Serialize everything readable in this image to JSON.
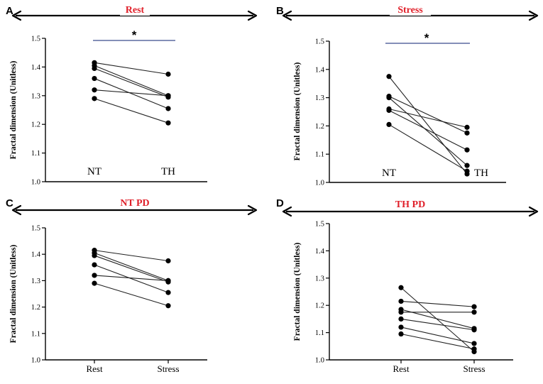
{
  "chart_data": [
    {
      "type": "line",
      "panel": "A",
      "title": "Rest",
      "ylabel": "Fractal dimension (Unitless)",
      "categories": [
        "NT",
        "TH"
      ],
      "category_labels_inside": true,
      "ylim": [
        1.0,
        1.5
      ],
      "yticks": [
        "1.0",
        "1.1",
        "1.2",
        "1.3",
        "1.4",
        "1.5"
      ],
      "significance": "*",
      "series": [
        {
          "name": "s1",
          "values": [
            1.415,
            1.375
          ]
        },
        {
          "name": "s2",
          "values": [
            1.405,
            1.3
          ]
        },
        {
          "name": "s3",
          "values": [
            1.395,
            1.295
          ]
        },
        {
          "name": "s4",
          "values": [
            1.36,
            1.255
          ]
        },
        {
          "name": "s5",
          "values": [
            1.32,
            1.3
          ]
        },
        {
          "name": "s6",
          "values": [
            1.29,
            1.205
          ]
        }
      ]
    },
    {
      "type": "line",
      "panel": "B",
      "title": "Stress",
      "ylabel": "Fractal dimension (Unitless)",
      "categories": [
        "NT",
        "TH"
      ],
      "category_labels_inside": true,
      "ylim": [
        1.0,
        1.5
      ],
      "yticks": [
        "1.0",
        "1.1",
        "1.2",
        "1.3",
        "1.4",
        "1.5"
      ],
      "significance": "*",
      "series": [
        {
          "name": "s1",
          "values": [
            1.375,
            1.03
          ]
        },
        {
          "name": "s2",
          "values": [
            1.305,
            1.175
          ]
        },
        {
          "name": "s3",
          "values": [
            1.3,
            1.06
          ]
        },
        {
          "name": "s4",
          "values": [
            1.26,
            1.195
          ]
        },
        {
          "name": "s5",
          "values": [
            1.255,
            1.115
          ]
        },
        {
          "name": "s6",
          "values": [
            1.205,
            1.04
          ]
        }
      ]
    },
    {
      "type": "line",
      "panel": "C",
      "title": "NT PD",
      "ylabel": "Fractal dimension (Unitless)",
      "categories": [
        "Rest",
        "Stress"
      ],
      "category_labels_inside": false,
      "ylim": [
        1.0,
        1.5
      ],
      "yticks": [
        "1.0",
        "1.1",
        "1.2",
        "1.3",
        "1.4",
        "1.5"
      ],
      "significance": "",
      "series": [
        {
          "name": "s1",
          "values": [
            1.415,
            1.375
          ]
        },
        {
          "name": "s2",
          "values": [
            1.405,
            1.3
          ]
        },
        {
          "name": "s3",
          "values": [
            1.395,
            1.295
          ]
        },
        {
          "name": "s4",
          "values": [
            1.36,
            1.255
          ]
        },
        {
          "name": "s5",
          "values": [
            1.32,
            1.3
          ]
        },
        {
          "name": "s6",
          "values": [
            1.29,
            1.205
          ]
        }
      ]
    },
    {
      "type": "line",
      "panel": "D",
      "title": "TH PD",
      "ylabel": "Fractal dimension (Unitless)",
      "categories": [
        "Rest",
        "Stress"
      ],
      "category_labels_inside": false,
      "ylim": [
        1.0,
        1.5
      ],
      "yticks": [
        "1.0",
        "1.1",
        "1.2",
        "1.3",
        "1.4",
        "1.5"
      ],
      "significance": "",
      "series": [
        {
          "name": "s1",
          "values": [
            1.265,
            1.03
          ]
        },
        {
          "name": "s2",
          "values": [
            1.215,
            1.195
          ]
        },
        {
          "name": "s3",
          "values": [
            1.185,
            1.115
          ]
        },
        {
          "name": "s4",
          "values": [
            1.175,
            1.175
          ]
        },
        {
          "name": "s5",
          "values": [
            1.15,
            1.11
          ]
        },
        {
          "name": "s6",
          "values": [
            1.12,
            1.06
          ]
        },
        {
          "name": "s7",
          "values": [
            1.095,
            1.04
          ]
        }
      ]
    }
  ]
}
